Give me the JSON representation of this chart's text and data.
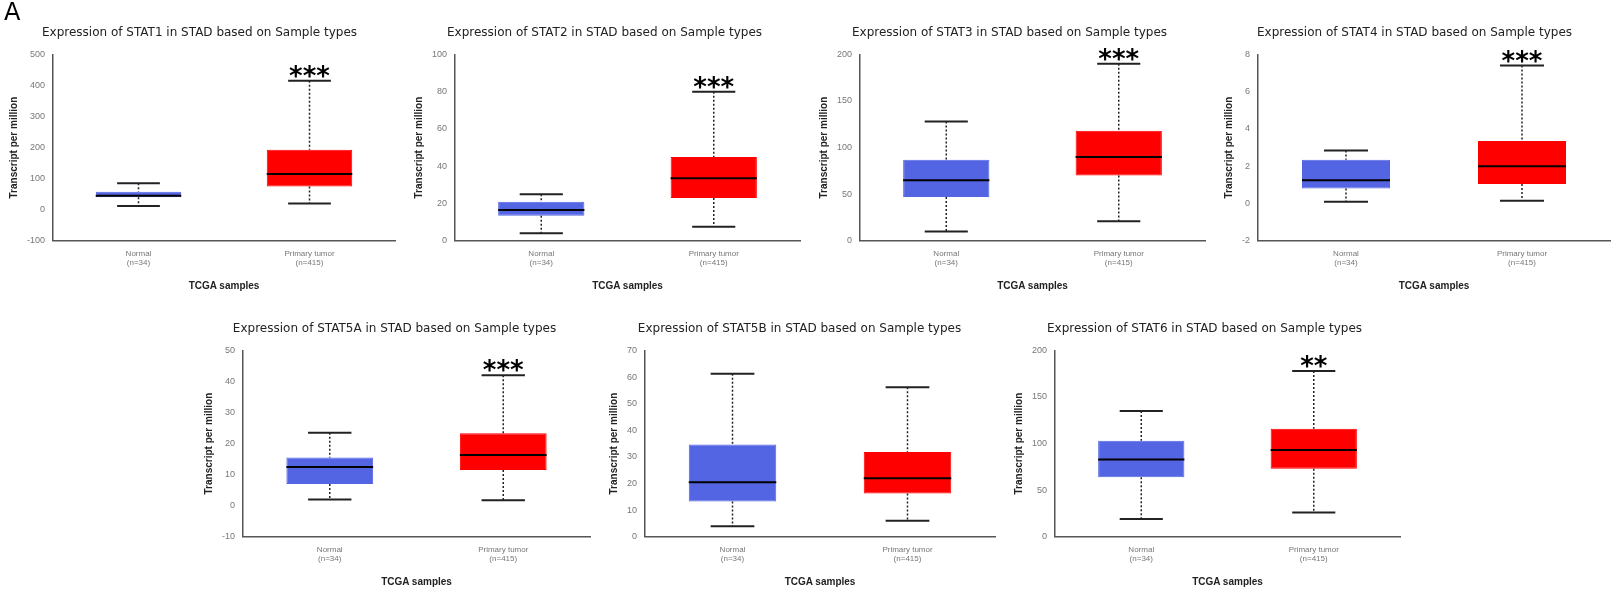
{
  "chart_data": [
    {
      "type": "box",
      "title": "Expression of STAT1 in STAD based on Sample types",
      "xlabel": "TCGA samples",
      "ylabel": "Transcript per million",
      "categories": [
        "Normal\n(n=34)",
        "Primary tumor\n(n=415)"
      ],
      "colors": [
        "#5465e3",
        "#ff0000"
      ],
      "ylim": [
        -100,
        500
      ],
      "yticks": [
        -100,
        0,
        100,
        200,
        300,
        400,
        500
      ],
      "boxes": [
        {
          "low": 12,
          "q1": 40,
          "median": 45,
          "q3": 58,
          "high": 85
        },
        {
          "low": 20,
          "q1": 75,
          "median": 115,
          "q3": 193,
          "high": 415
        }
      ],
      "annotations": [
        "A",
        {
          "text": "***",
          "x": "Primary tumor\n(n=415)",
          "y": 415
        }
      ]
    },
    {
      "type": "box",
      "title": "Expression of STAT2 in STAD based on Sample types",
      "xlabel": "TCGA samples",
      "ylabel": "Transcript per million",
      "categories": [
        "Normal\n(n=34)",
        "Primary tumor\n(n=415)"
      ],
      "colors": [
        "#5465e3",
        "#ff0000"
      ],
      "ylim": [
        0,
        100
      ],
      "yticks": [
        0,
        20,
        40,
        60,
        80,
        100
      ],
      "boxes": [
        {
          "low": 4,
          "q1": 13.5,
          "median": 16.5,
          "q3": 21,
          "high": 25
        },
        {
          "low": 7.5,
          "q1": 23,
          "median": 33.5,
          "q3": 45,
          "high": 80
        }
      ],
      "annotations": [
        {
          "text": "***",
          "x": "Primary tumor\n(n=415)",
          "y": 80
        }
      ]
    },
    {
      "type": "box",
      "title": "Expression of STAT3 in STAD based on Sample types",
      "xlabel": "TCGA samples",
      "ylabel": "Transcript per million",
      "categories": [
        "Normal\n(n=34)",
        "Primary tumor\n(n=415)"
      ],
      "colors": [
        "#5465e3",
        "#ff0000"
      ],
      "ylim": [
        0,
        200
      ],
      "yticks": [
        0,
        50,
        100,
        150,
        200
      ],
      "boxes": [
        {
          "low": 10,
          "q1": 47,
          "median": 65,
          "q3": 87,
          "high": 128
        },
        {
          "low": 21,
          "q1": 70,
          "median": 90,
          "q3": 118,
          "high": 190
        }
      ],
      "annotations": [
        {
          "text": "***",
          "x": "Primary tumor\n(n=415)",
          "y": 190
        }
      ]
    },
    {
      "type": "box",
      "title": "Expression of STAT4 in STAD based on Sample types",
      "xlabel": "TCGA samples",
      "ylabel": "Transcript per million",
      "categories": [
        "Normal\n(n=34)",
        "Primary tumor\n(n=415)"
      ],
      "colors": [
        "#5465e3",
        "#ff0000"
      ],
      "ylim": [
        -2,
        8
      ],
      "yticks": [
        -2,
        0,
        2,
        4,
        6,
        8
      ],
      "boxes": [
        {
          "low": 0.1,
          "q1": 0.8,
          "median": 1.25,
          "q3": 2.35,
          "high": 2.85
        },
        {
          "low": 0.15,
          "q1": 1.05,
          "median": 2.0,
          "q3": 3.35,
          "high": 7.4
        }
      ],
      "annotations": [
        {
          "text": "***",
          "x": "Primary tumor\n(n=415)",
          "y": 7.4
        }
      ]
    },
    {
      "type": "box",
      "title": "Expression of STAT5A in STAD based on Sample types",
      "xlabel": "TCGA samples",
      "ylabel": "Transcript per million",
      "categories": [
        "Normal\n(n=34)",
        "Primary tumor\n(n=415)"
      ],
      "colors": [
        "#5465e3",
        "#ff0000"
      ],
      "ylim": [
        -10,
        50
      ],
      "yticks": [
        -10,
        0,
        10,
        20,
        30,
        40,
        50
      ],
      "boxes": [
        {
          "low": 2,
          "q1": 7,
          "median": 12.5,
          "q3": 15.5,
          "high": 23.5
        },
        {
          "low": 1.8,
          "q1": 11.5,
          "median": 16.3,
          "q3": 23.3,
          "high": 42
        }
      ],
      "annotations": [
        {
          "text": "***",
          "x": "Primary tumor\n(n=415)",
          "y": 42
        }
      ]
    },
    {
      "type": "box",
      "title": "Expression of STAT5B in STAD based on Sample types",
      "xlabel": "TCGA samples",
      "ylabel": "Transcript per million",
      "categories": [
        "Normal\n(n=34)",
        "Primary tumor\n(n=415)"
      ],
      "colors": [
        "#5465e3",
        "#ff0000"
      ],
      "ylim": [
        0,
        70
      ],
      "yticks": [
        0,
        10,
        20,
        30,
        40,
        50,
        60,
        70
      ],
      "boxes": [
        {
          "low": 4,
          "q1": 13.3,
          "median": 20.5,
          "q3": 34.7,
          "high": 61.2
        },
        {
          "low": 6,
          "q1": 16.3,
          "median": 22,
          "q3": 31.8,
          "high": 56.2
        }
      ]
    },
    {
      "type": "box",
      "title": "Expression of STAT6 in STAD based on Sample types",
      "xlabel": "TCGA samples",
      "ylabel": "Transcript per million",
      "categories": [
        "Normal\n(n=34)",
        "Primary tumor\n(n=415)"
      ],
      "colors": [
        "#5465e3",
        "#ff0000"
      ],
      "ylim": [
        0,
        200
      ],
      "yticks": [
        0,
        50,
        100,
        150,
        200
      ],
      "boxes": [
        {
          "low": 19,
          "q1": 64,
          "median": 83,
          "q3": 103,
          "high": 135
        },
        {
          "low": 26,
          "q1": 73,
          "median": 93,
          "q3": 116,
          "high": 178
        }
      ],
      "annotations": [
        {
          "text": "**",
          "x": "Primary tumor\n(n=415)",
          "y": 178
        }
      ]
    }
  ]
}
